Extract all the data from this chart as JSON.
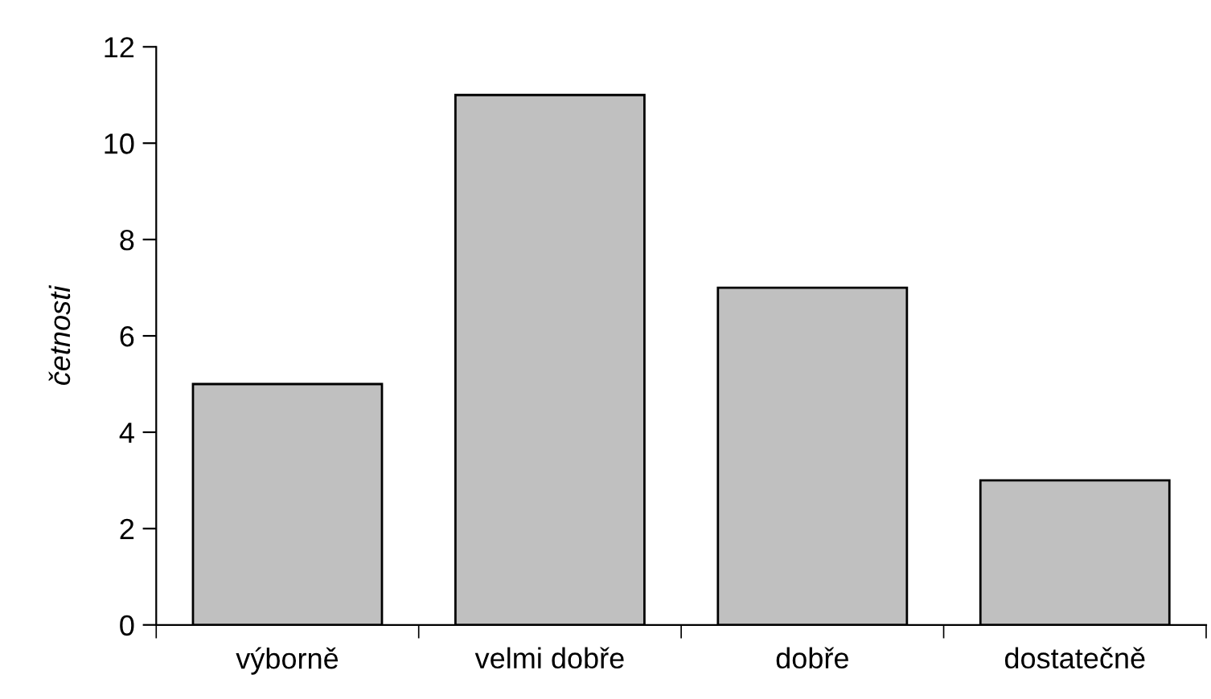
{
  "chart_data": {
    "type": "bar",
    "ylabel": "četnosti",
    "categories": [
      "výborně",
      "velmi dobře",
      "dobře",
      "dostatečně"
    ],
    "values": [
      5,
      11,
      7,
      3
    ],
    "color": "#c0c0c0",
    "ylim": [
      0,
      12
    ],
    "yticks": [
      0,
      2,
      4,
      6,
      8,
      10,
      12
    ],
    "grid": false
  }
}
